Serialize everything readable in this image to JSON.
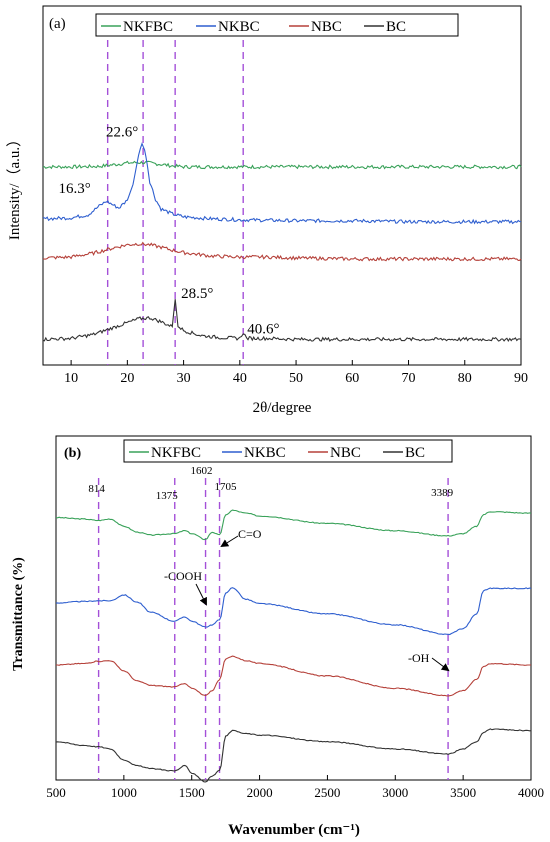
{
  "figure": {
    "panel_a_label": "(a)",
    "panel_b_label": "(b)"
  },
  "chart_data": [
    {
      "type": "line",
      "panel": "(a)",
      "xlabel": "2θ/degree",
      "ylabel": "Intensity/（a.u.）",
      "xlim": [
        5,
        90
      ],
      "xticks": [
        10,
        20,
        30,
        40,
        50,
        60,
        70,
        80,
        90
      ],
      "legend": {
        "placement": "top",
        "entries": [
          "NKFBC",
          "NKBC",
          "NBC",
          "BC"
        ]
      },
      "series": [
        {
          "name": "NKFBC",
          "color": "#3aa25a",
          "values_note": "",
          "x": [
            5,
            10,
            15,
            18,
            20,
            22,
            24,
            26,
            28,
            30,
            35,
            40,
            50,
            60,
            70,
            80,
            90
          ],
          "y": [
            0.93,
            0.93,
            0.935,
            0.955,
            0.97,
            0.975,
            0.97,
            0.955,
            0.94,
            0.93,
            0.93,
            0.93,
            0.93,
            0.93,
            0.93,
            0.93,
            0.93
          ]
        },
        {
          "name": "NKBC",
          "color": "#2f5fcf",
          "x": [
            5,
            10,
            13,
            15,
            16.3,
            17.5,
            18.5,
            20,
            21,
            22,
            22.6,
            23.3,
            24,
            25,
            26,
            28,
            30,
            35,
            40,
            50,
            60,
            70,
            80,
            90
          ],
          "y": [
            0.4,
            0.41,
            0.44,
            0.53,
            0.58,
            0.54,
            0.51,
            0.59,
            0.75,
            1.05,
            1.18,
            1.05,
            0.78,
            0.6,
            0.5,
            0.45,
            0.42,
            0.4,
            0.39,
            0.38,
            0.38,
            0.37,
            0.37,
            0.37
          ]
        },
        {
          "name": "NBC",
          "color": "#b5413a",
          "x": [
            5,
            10,
            14,
            18,
            20,
            22,
            24,
            26,
            28,
            30,
            35,
            40,
            45,
            50,
            60,
            70,
            80,
            90
          ],
          "y": [
            0.0,
            0.01,
            0.05,
            0.11,
            0.135,
            0.145,
            0.135,
            0.11,
            0.08,
            0.055,
            0.02,
            0.01,
            0.01,
            0.0,
            -0.01,
            -0.01,
            -0.01,
            -0.01
          ]
        },
        {
          "name": "BC",
          "color": "#333333",
          "x": [
            5,
            10,
            14,
            18,
            20,
            22,
            24,
            26,
            27.5,
            28.0,
            28.5,
            29.0,
            30,
            33,
            36,
            40,
            40.6,
            41.2,
            45,
            50,
            60,
            70,
            80,
            90
          ],
          "y": [
            -0.83,
            -0.82,
            -0.78,
            -0.7,
            -0.66,
            -0.62,
            -0.61,
            -0.65,
            -0.69,
            -0.7,
            -0.42,
            -0.69,
            -0.74,
            -0.79,
            -0.81,
            -0.82,
            -0.76,
            -0.82,
            -0.82,
            -0.83,
            -0.83,
            -0.83,
            -0.83,
            -0.83
          ]
        }
      ],
      "reference_lines_x": [
        16.5,
        22.8,
        28.5,
        40.6
      ],
      "annotations": [
        {
          "text": "22.6°",
          "x": 22.6,
          "y": 1.2
        },
        {
          "text": "16.3°",
          "x": 16.3,
          "y": 0.6
        },
        {
          "text": "28.5°",
          "x": 28.5,
          "y": -0.43
        },
        {
          "text": "40.6°",
          "x": 40.6,
          "y": -0.75
        }
      ]
    },
    {
      "type": "line",
      "panel": "(b)",
      "xlabel": "Wavenumber (cm⁻¹)",
      "ylabel": "Transmittance (%)",
      "xlim": [
        500,
        4000
      ],
      "xticks": [
        500,
        1000,
        1500,
        2000,
        2500,
        3000,
        3500,
        4000
      ],
      "legend": {
        "placement": "top",
        "entries": [
          "NKFBC",
          "NKBC",
          "NBC",
          "BC"
        ]
      },
      "series": [
        {
          "name": "NKFBC",
          "color": "#3aa25a",
          "x": [
            500,
            700,
            814,
            900,
            1000,
            1100,
            1200,
            1375,
            1450,
            1500,
            1602,
            1650,
            1705,
            1750,
            1800,
            1900,
            2000,
            2500,
            3000,
            3389,
            3500,
            3600,
            3650,
            3700,
            4000
          ],
          "y": [
            3.02,
            3.0,
            2.98,
            3.0,
            2.9,
            2.82,
            2.78,
            2.8,
            2.84,
            2.8,
            2.72,
            2.82,
            2.78,
            3.05,
            3.12,
            3.08,
            3.04,
            2.94,
            2.84,
            2.77,
            2.8,
            2.9,
            3.06,
            3.1,
            3.08
          ]
        },
        {
          "name": "NKBC",
          "color": "#2f5fcf",
          "x": [
            500,
            700,
            814,
            900,
            1000,
            1100,
            1200,
            1375,
            1450,
            1500,
            1602,
            1650,
            1705,
            1750,
            1800,
            1900,
            2000,
            2500,
            3000,
            3389,
            3500,
            3600,
            3650,
            3700,
            4000
          ],
          "y": [
            1.85,
            1.87,
            1.88,
            1.88,
            1.96,
            1.86,
            1.72,
            1.6,
            1.66,
            1.6,
            1.52,
            1.55,
            1.62,
            1.98,
            2.06,
            1.9,
            1.84,
            1.7,
            1.55,
            1.42,
            1.5,
            1.7,
            2.02,
            2.05,
            2.05
          ]
        },
        {
          "name": "NBC",
          "color": "#b5413a",
          "x": [
            500,
            700,
            814,
            900,
            1000,
            1100,
            1200,
            1375,
            1450,
            1500,
            1602,
            1650,
            1705,
            1750,
            1800,
            1900,
            2000,
            2500,
            3000,
            3389,
            3500,
            3600,
            3650,
            3700,
            4000
          ],
          "y": [
            1.0,
            1.02,
            1.05,
            1.06,
            0.92,
            0.78,
            0.72,
            0.7,
            0.75,
            0.68,
            0.58,
            0.65,
            0.8,
            1.08,
            1.12,
            1.06,
            1.02,
            0.85,
            0.68,
            0.58,
            0.65,
            0.8,
            0.98,
            1.02,
            1.0
          ]
        },
        {
          "name": "BC",
          "color": "#333333",
          "x": [
            500,
            700,
            814,
            900,
            1000,
            1100,
            1200,
            1375,
            1450,
            1500,
            1602,
            1650,
            1705,
            1750,
            1800,
            1900,
            2000,
            2500,
            3000,
            3389,
            3500,
            3600,
            3650,
            3700,
            4000
          ],
          "y": [
            -0.05,
            -0.1,
            -0.12,
            -0.15,
            -0.3,
            -0.38,
            -0.42,
            -0.45,
            -0.38,
            -0.48,
            -0.6,
            -0.52,
            -0.45,
            0.02,
            0.1,
            0.06,
            0.04,
            -0.05,
            -0.15,
            -0.22,
            -0.15,
            -0.05,
            0.08,
            0.12,
            0.1
          ]
        }
      ],
      "reference_lines_x": [
        814,
        1375,
        1602,
        1705,
        3389
      ],
      "peak_labels": [
        {
          "text": "814",
          "x": 814
        },
        {
          "text": "1375",
          "x": 1375
        },
        {
          "text": "1602",
          "x": 1602
        },
        {
          "text": "1705",
          "x": 1705
        },
        {
          "text": "3389",
          "x": 3389
        }
      ],
      "annotations": [
        {
          "text": "C=O"
        },
        {
          "text": "-COOH"
        },
        {
          "text": "-OH"
        }
      ]
    }
  ]
}
